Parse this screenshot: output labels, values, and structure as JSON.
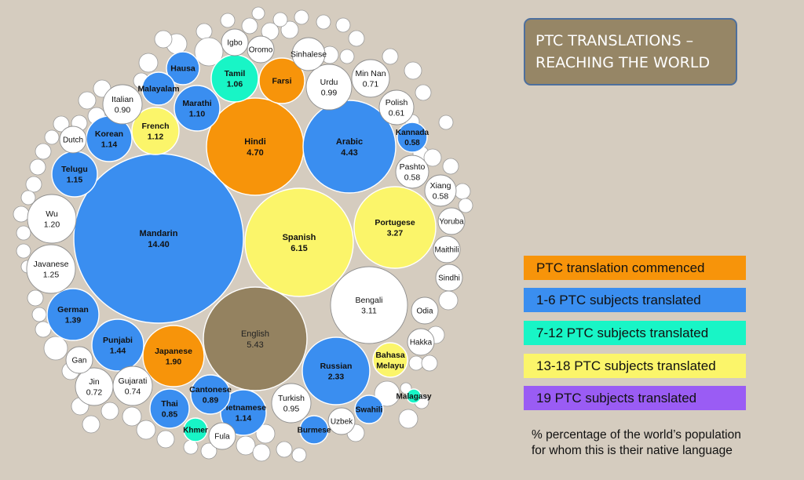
{
  "title": {
    "line1": "PTC TRANSLATIONS –",
    "line2": "REACHING THE WORLD"
  },
  "legend": [
    {
      "label": "PTC translation commenced",
      "color": "#f7940a",
      "text_color": "#111111"
    },
    {
      "label": "1-6 PTC subjects translated",
      "color": "#3a8ef0",
      "text_color": "#111111"
    },
    {
      "label": "7-12 PTC subjects translated",
      "color": "#18f5c6",
      "text_color": "#111111"
    },
    {
      "label": "13-18 PTC subjects translated",
      "color": "#fbf56a",
      "text_color": "#111111"
    },
    {
      "label": "19 PTC subjects translated",
      "color": "#9a5cf4",
      "text_color": "#111111"
    }
  ],
  "note": {
    "line1": "% percentage of the world’s population",
    "line2": "for whom this is their native language"
  },
  "chart_data": {
    "type": "bubble",
    "size_variable": "% of world population (native language)",
    "categories_colors": {
      "commenced": "#f7940a",
      "1-6": "#3a8ef0",
      "7-12": "#18f5c6",
      "13-18": "#fbf56a",
      "english": "#948260",
      "none": "#ffffff"
    },
    "bubbles": [
      {
        "name": "Mandarin",
        "value": "14.40",
        "category": "1-6"
      },
      {
        "name": "Spanish",
        "value": "6.15",
        "category": "13-18"
      },
      {
        "name": "English",
        "value": "5.43",
        "category": "english"
      },
      {
        "name": "Hindi",
        "value": "4.70",
        "category": "commenced"
      },
      {
        "name": "Arabic",
        "value": "4.43",
        "category": "1-6"
      },
      {
        "name": "Portugese",
        "value": "3.27",
        "category": "13-18"
      },
      {
        "name": "Bengali",
        "value": "3.11",
        "category": "none"
      },
      {
        "name": "Russian",
        "value": "2.33",
        "category": "1-6"
      },
      {
        "name": "Japanese",
        "value": "1.90",
        "category": "commenced"
      },
      {
        "name": "Punjabi",
        "value": "1.44",
        "category": "1-6"
      },
      {
        "name": "German",
        "value": "1.39",
        "category": "1-6"
      },
      {
        "name": "Javanese",
        "value": "1.25",
        "category": "none"
      },
      {
        "name": "Wu",
        "value": "1.20",
        "category": "none"
      },
      {
        "name": "Telugu",
        "value": "1.15",
        "category": "1-6"
      },
      {
        "name": "Korean",
        "value": "1.14",
        "category": "1-6"
      },
      {
        "name": "Vietnamese",
        "value": "1.14",
        "category": "1-6"
      },
      {
        "name": "French",
        "value": "1.12",
        "category": "13-18"
      },
      {
        "name": "Marathi",
        "value": "1.10",
        "category": "1-6"
      },
      {
        "name": "Tamil",
        "value": "1.06",
        "category": "7-12"
      },
      {
        "name": "Urdu",
        "value": "0.99",
        "category": "none"
      },
      {
        "name": "Turkish",
        "value": "0.95",
        "category": "none"
      },
      {
        "name": "Italian",
        "value": "0.90",
        "category": "none"
      },
      {
        "name": "Cantonese",
        "value": "0.89",
        "category": "1-6"
      },
      {
        "name": "Thai",
        "value": "0.85",
        "category": "1-6"
      },
      {
        "name": "Gujarati",
        "value": "0.74",
        "category": "none"
      },
      {
        "name": "Jin",
        "value": "0.72",
        "category": "none"
      },
      {
        "name": "Min Nan",
        "value": "0.71",
        "category": "none"
      },
      {
        "name": "Polish",
        "value": "0.61",
        "category": "none"
      },
      {
        "name": "Kannada",
        "value": "0.58",
        "category": "1-6"
      },
      {
        "name": "Pashto",
        "value": "0.58",
        "category": "none"
      },
      {
        "name": "Xiang",
        "value": "0.58",
        "category": "none"
      },
      {
        "name": "Farsi",
        "value": "",
        "category": "commenced"
      },
      {
        "name": "Hausa",
        "value": "",
        "category": "1-6"
      },
      {
        "name": "Malayalam",
        "value": "",
        "category": "1-6"
      },
      {
        "name": "Bahasa Melayu",
        "value": "",
        "category": "13-18"
      },
      {
        "name": "Swahili",
        "value": "",
        "category": "1-6"
      },
      {
        "name": "Burmese",
        "value": "",
        "category": "1-6"
      },
      {
        "name": "Khmer",
        "value": "",
        "category": "7-12"
      },
      {
        "name": "Malagasy",
        "value": "",
        "category": "7-12"
      },
      {
        "name": "Igbo",
        "value": "",
        "category": "none"
      },
      {
        "name": "Oromo",
        "value": "",
        "category": "none"
      },
      {
        "name": "Sinhalese",
        "value": "",
        "category": "none"
      },
      {
        "name": "Dutch",
        "value": "",
        "category": "none"
      },
      {
        "name": "Yoruba",
        "value": "",
        "category": "none"
      },
      {
        "name": "Maithili",
        "value": "",
        "category": "none"
      },
      {
        "name": "Sindhi",
        "value": "",
        "category": "none"
      },
      {
        "name": "Odia",
        "value": "",
        "category": "none"
      },
      {
        "name": "Hakka",
        "value": "",
        "category": "none"
      },
      {
        "name": "Gan",
        "value": "",
        "category": "none"
      },
      {
        "name": "Uzbek",
        "value": "",
        "category": "none"
      },
      {
        "name": "Fula",
        "value": "",
        "category": "none"
      }
    ]
  }
}
